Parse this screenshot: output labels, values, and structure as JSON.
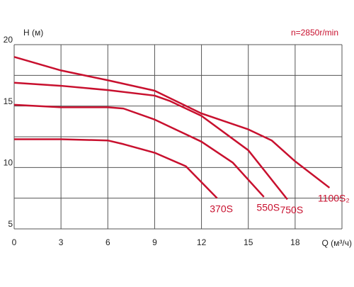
{
  "chart_data": {
    "type": "line",
    "y_label": "H (м)",
    "x_label": "Q (м³/ч)",
    "annotation": "n=2850r/min",
    "xlim": [
      0,
      21
    ],
    "xticks": [
      0,
      3,
      6,
      9,
      12,
      15,
      18
    ],
    "ylim": [
      5,
      20
    ],
    "yticks": [
      5,
      10,
      15,
      20
    ],
    "ygrid": [
      5,
      7.5,
      10,
      12.5,
      15,
      17.5,
      20
    ],
    "grid": true,
    "series": [
      {
        "name": "370S",
        "color": "#c8102e",
        "x": [
          0,
          3,
          6,
          7,
          9,
          11,
          13
        ],
        "values": [
          12.3,
          12.3,
          12.2,
          11.9,
          11.2,
          10.1,
          7.5
        ]
      },
      {
        "name": "550S",
        "color": "#c8102e",
        "x": [
          0,
          3,
          6,
          7,
          9,
          12,
          14,
          16
        ],
        "values": [
          15.1,
          14.9,
          14.9,
          14.8,
          13.9,
          12.1,
          10.4,
          7.6
        ]
      },
      {
        "name": "750S",
        "color": "#c8102e",
        "x": [
          0,
          3,
          6,
          9,
          10,
          12,
          15,
          17.5
        ],
        "values": [
          16.9,
          16.65,
          16.3,
          15.85,
          15.4,
          14.2,
          11.4,
          7.4
        ]
      },
      {
        "name": "1100S₂",
        "color": "#c8102e",
        "x": [
          0,
          3,
          6,
          9,
          12,
          15,
          16.5,
          18,
          20.2
        ],
        "values": [
          19.0,
          17.9,
          17.1,
          16.25,
          14.4,
          13.1,
          12.2,
          10.5,
          8.35
        ]
      }
    ]
  }
}
